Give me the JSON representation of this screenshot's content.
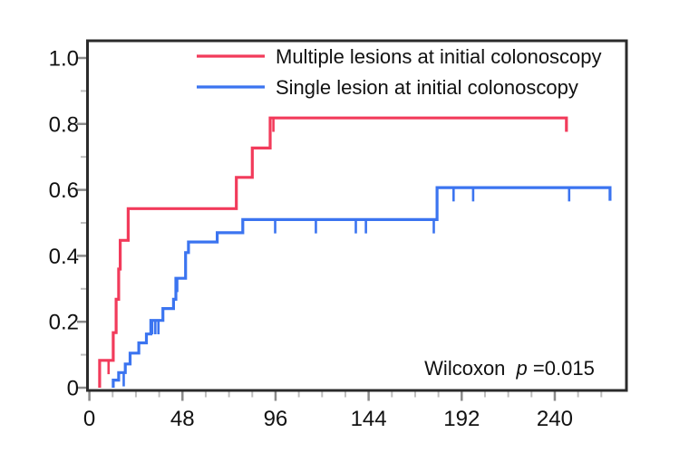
{
  "figure": {
    "background": "#ffffff",
    "frame_color": "#2b2b2b",
    "major_tick_color": "#8a8a8a",
    "minor_tick_color": "#bdbdbd"
  },
  "legend": {
    "items": [
      {
        "label": "Multiple lesions at initial colonoscopy",
        "color": "#f23b5b"
      },
      {
        "label": "Single lesion at initial colonoscopy",
        "color": "#3b74f0"
      }
    ]
  },
  "annotation": {
    "prefix": "Wilcoxon",
    "p_symbol": "p",
    "value": "=0.015"
  },
  "chart_data": {
    "type": "line",
    "subtype": "kaplan-meier-cumulative-incidence-steps",
    "title": "",
    "xlabel": "",
    "ylabel": "",
    "xlim": [
      0,
      277
    ],
    "ylim": [
      0,
      1.05
    ],
    "grid": false,
    "legend_position": "top-inside",
    "x_major_ticks": [
      0,
      48,
      96,
      144,
      192,
      240
    ],
    "x_tick_labels": [
      "0",
      "48",
      "96",
      "144",
      "192",
      "240"
    ],
    "x_minor_step": 12,
    "x_minor_max": 264,
    "y_major_ticks": [
      0,
      0.2,
      0.4,
      0.6,
      0.8,
      1.0
    ],
    "y_tick_labels": [
      "0",
      "0.2",
      "0.4",
      "0.6",
      "0.8",
      "1.0"
    ],
    "y_minor_ticks": [
      0.1,
      0.3,
      0.5,
      0.7,
      0.9
    ],
    "wilcoxon_p": "0.015",
    "series": [
      {
        "name": "Multiple lesions at initial colonoscopy",
        "color": "#f23b5b",
        "steps": [
          [
            5.3,
            0.083
          ],
          [
            12.3,
            0.167
          ],
          [
            13.8,
            0.268
          ],
          [
            15.1,
            0.36
          ],
          [
            15.9,
            0.447
          ],
          [
            20,
            0.543
          ],
          [
            75.8,
            0.638
          ],
          [
            84,
            0.727
          ],
          [
            93.2,
            0.818
          ]
        ],
        "end_t": 246,
        "end_drop": 0.042,
        "censor_marks": [
          [
            9.9,
            0.083
          ],
          [
            94.9,
            0.818
          ]
        ]
      },
      {
        "name": "Single lesion at initial colonoscopy",
        "color": "#3b74f0",
        "steps": [
          [
            12.3,
            0.023
          ],
          [
            15.1,
            0.046
          ],
          [
            18.5,
            0.072
          ],
          [
            21,
            0.105
          ],
          [
            25.5,
            0.136
          ],
          [
            29.4,
            0.163
          ],
          [
            31.7,
            0.204
          ],
          [
            37.9,
            0.24
          ],
          [
            43.4,
            0.268
          ],
          [
            44.6,
            0.332
          ],
          [
            49.6,
            0.41
          ],
          [
            51.1,
            0.442
          ],
          [
            65.9,
            0.47
          ],
          [
            79.1,
            0.51
          ],
          [
            179.3,
            0.607
          ]
        ],
        "end_t": 268.5,
        "end_drop": 0.04,
        "censor_marks": [
          [
            17.7,
            0.046
          ],
          [
            32.4,
            0.204
          ],
          [
            34.0,
            0.204
          ],
          [
            35.6,
            0.204
          ],
          [
            45.3,
            0.332
          ],
          [
            95.8,
            0.51
          ],
          [
            116.8,
            0.51
          ],
          [
            137.4,
            0.51
          ],
          [
            142.6,
            0.51
          ],
          [
            177.6,
            0.51
          ],
          [
            187.8,
            0.607
          ],
          [
            197.9,
            0.607
          ],
          [
            247.4,
            0.607
          ]
        ]
      }
    ]
  }
}
